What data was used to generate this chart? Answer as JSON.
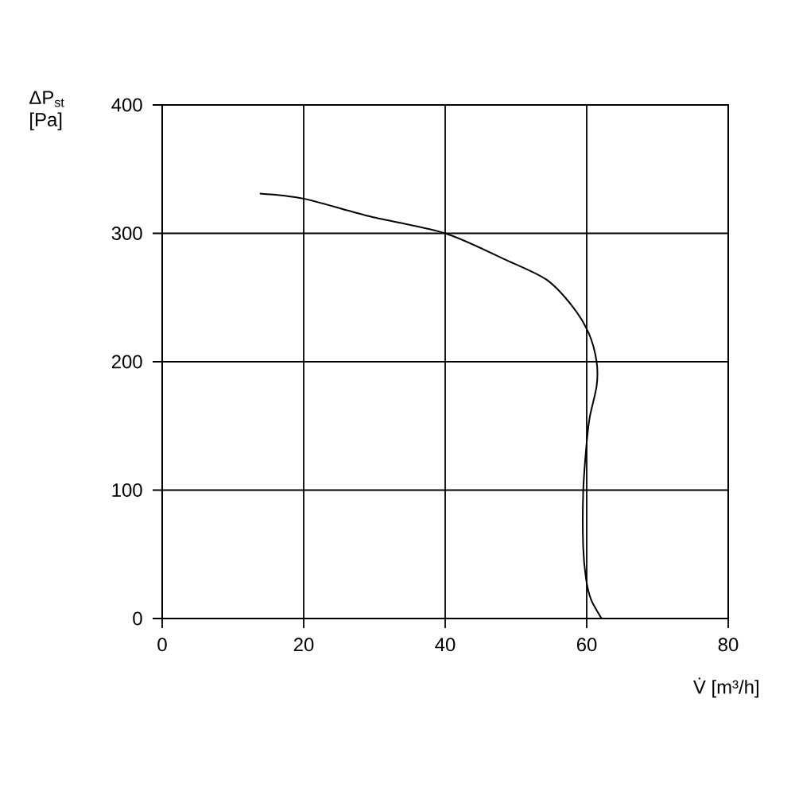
{
  "chart_data": {
    "type": "line",
    "xlabel": "V̇ [m³/h]",
    "ylabel": "ΔP$_{st}$ [Pa]",
    "x": [
      13.8,
      20,
      29.5,
      40,
      48.3,
      54.3,
      58,
      60.3,
      61.4,
      61.4,
      60.4,
      59.9,
      59.5,
      59.5,
      59.9,
      60.6,
      62.1
    ],
    "values": [
      331,
      327,
      313,
      300,
      280,
      264,
      243,
      222,
      200,
      181,
      156,
      131,
      98,
      56,
      31,
      15,
      0
    ],
    "color": "#000000",
    "marker": "none",
    "line_style": "solid",
    "xlim": [
      0,
      80
    ],
    "ylim": [
      0,
      400
    ],
    "xticks": [
      0,
      20,
      40,
      60,
      80
    ],
    "yticks": [
      0,
      100,
      200,
      300,
      400
    ],
    "grid": true
  }
}
